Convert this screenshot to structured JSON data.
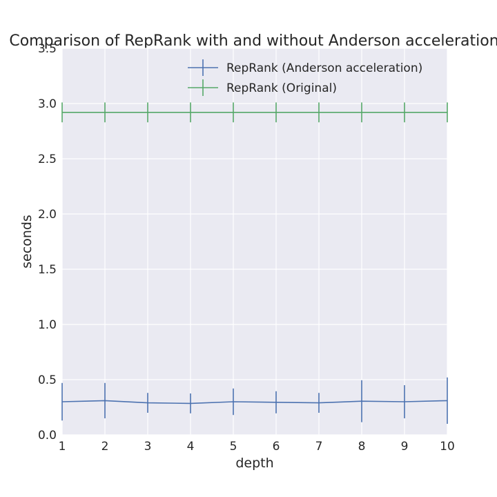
{
  "chart_data": {
    "type": "line",
    "title": "Comparison of RepRank with and without Anderson acceleration",
    "xlabel": "depth",
    "ylabel": "seconds",
    "x": [
      1,
      2,
      3,
      4,
      5,
      6,
      7,
      8,
      9,
      10
    ],
    "xlim": [
      1,
      10
    ],
    "ylim": [
      0.0,
      3.5
    ],
    "xticks": [
      "1",
      "2",
      "3",
      "4",
      "5",
      "6",
      "7",
      "8",
      "9",
      "10"
    ],
    "yticks": [
      "0.0",
      "0.5",
      "1.0",
      "1.5",
      "2.0",
      "2.5",
      "3.0",
      "3.5"
    ],
    "grid": true,
    "legend_position": "top-right",
    "background": "#eaeaf2",
    "series": [
      {
        "name": "RepRank (Anderson acceleration)",
        "color": "#4c72b0",
        "values": [
          0.3,
          0.31,
          0.29,
          0.285,
          0.3,
          0.295,
          0.29,
          0.305,
          0.3,
          0.31
        ],
        "errors": [
          0.17,
          0.16,
          0.09,
          0.09,
          0.12,
          0.1,
          0.09,
          0.19,
          0.15,
          0.21
        ]
      },
      {
        "name": "RepRank (Original)",
        "color": "#55a868",
        "values": [
          2.92,
          2.92,
          2.92,
          2.92,
          2.92,
          2.92,
          2.92,
          2.92,
          2.92,
          2.92
        ],
        "errors": [
          0.09,
          0.09,
          0.09,
          0.09,
          0.09,
          0.09,
          0.09,
          0.09,
          0.09,
          0.09
        ]
      }
    ]
  }
}
